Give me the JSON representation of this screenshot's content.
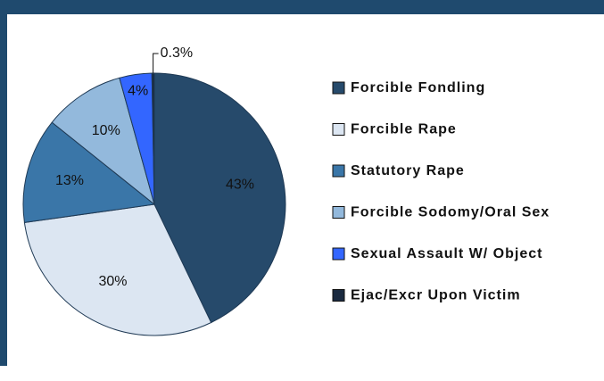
{
  "chart_data": {
    "type": "pie",
    "categories": [
      "Forcible Fondling",
      "Forcible Rape",
      "Statutory Rape",
      "Forcible Sodomy/Oral Sex",
      "Sexual Assault W/ Object",
      "Ejac/Excr Upon Victim"
    ],
    "values": [
      43,
      30,
      13,
      10,
      4,
      0.3
    ],
    "value_labels": [
      "43%",
      "30%",
      "13%",
      "10%",
      "4%",
      "0.3%"
    ],
    "colors": [
      "#264a6b",
      "#dce6f2",
      "#3a76a8",
      "#93b9dc",
      "#3366ff",
      "#1a2a40"
    ],
    "legend": "right"
  }
}
